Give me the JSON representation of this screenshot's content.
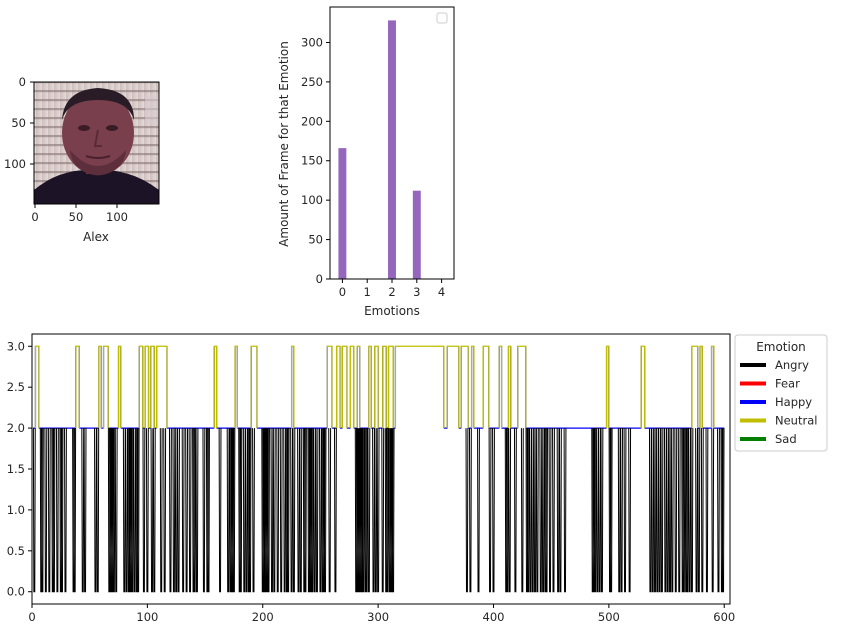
{
  "image_panel": {
    "xlabel": "Alex",
    "xticks": [
      "0",
      "50",
      "100"
    ],
    "yticks": [
      "0",
      "50",
      "100"
    ]
  },
  "chart_data": [
    {
      "type": "bar",
      "xlabel": "Emotions",
      "ylabel": "Amount of Frame for that Emotion",
      "categories": [
        "0",
        "1",
        "2",
        "3",
        "4"
      ],
      "values": [
        166,
        0,
        328,
        112,
        0
      ],
      "ylim": [
        0,
        345
      ],
      "yticks": [
        0,
        50,
        100,
        150,
        200,
        250,
        300
      ],
      "bar_color": "#9467bd",
      "legend": "top-right (empty)"
    },
    {
      "type": "line",
      "xlim": [
        0,
        605
      ],
      "ylim": [
        -0.15,
        3.15
      ],
      "xticks": [
        0,
        100,
        200,
        300,
        400,
        500,
        600
      ],
      "yticks": [
        "0.0",
        "0.5",
        "1.0",
        "1.5",
        "2.0",
        "2.5",
        "3.0"
      ],
      "legend": {
        "title": "Emotion",
        "placement": "outside-right",
        "entries": [
          {
            "label": "Angry",
            "color": "#000000"
          },
          {
            "label": "Fear",
            "color": "#ff0000"
          },
          {
            "label": "Happy",
            "color": "#0000ff"
          },
          {
            "label": "Neutral",
            "color": "#bfbf00"
          },
          {
            "label": "Sad",
            "color": "#008000"
          }
        ]
      },
      "x_end": 600,
      "neutral_frames": [
        [
          3,
          6
        ],
        [
          38,
          41
        ],
        [
          58,
          60
        ],
        [
          62,
          66
        ],
        [
          75,
          77
        ],
        [
          93,
          96
        ],
        [
          98,
          101
        ],
        [
          103,
          106
        ],
        [
          108,
          117
        ],
        [
          158,
          160
        ],
        [
          176,
          178
        ],
        [
          190,
          195
        ],
        [
          225,
          227
        ],
        [
          256,
          260
        ],
        [
          264,
          267
        ],
        [
          269,
          273
        ],
        [
          276,
          279
        ],
        [
          282,
          284
        ],
        [
          292,
          294
        ],
        [
          297,
          300
        ],
        [
          304,
          307
        ],
        [
          309,
          313
        ],
        [
          315,
          357
        ],
        [
          360,
          370
        ],
        [
          372,
          378
        ],
        [
          381,
          383
        ],
        [
          391,
          396
        ],
        [
          405,
          407
        ],
        [
          413,
          415
        ],
        [
          421,
          428
        ],
        [
          498,
          500
        ],
        [
          528,
          531
        ],
        [
          572,
          577
        ],
        [
          579,
          581
        ],
        [
          589,
          591
        ]
      ],
      "happy_frames": [
        [
          1,
          3
        ],
        [
          6,
          38
        ],
        [
          41,
          58
        ],
        [
          60,
          62
        ],
        [
          66,
          75
        ],
        [
          77,
          93
        ],
        [
          96,
          98
        ],
        [
          101,
          103
        ],
        [
          106,
          108
        ],
        [
          117,
          158
        ],
        [
          160,
          176
        ],
        [
          178,
          190
        ],
        [
          195,
          225
        ],
        [
          227,
          256
        ],
        [
          260,
          264
        ],
        [
          267,
          269
        ],
        [
          273,
          276
        ],
        [
          279,
          282
        ],
        [
          284,
          292
        ],
        [
          294,
          297
        ],
        [
          300,
          304
        ],
        [
          307,
          309
        ],
        [
          313,
          315
        ],
        [
          357,
          360
        ],
        [
          370,
          372
        ],
        [
          378,
          381
        ],
        [
          383,
          391
        ],
        [
          396,
          405
        ],
        [
          407,
          413
        ],
        [
          415,
          421
        ],
        [
          428,
          498
        ],
        [
          500,
          528
        ],
        [
          531,
          572
        ],
        [
          577,
          579
        ],
        [
          581,
          589
        ],
        [
          591,
          600
        ]
      ],
      "angry_frames": [
        2,
        8,
        9,
        12,
        15,
        18,
        19,
        22,
        25,
        26,
        29,
        36,
        37,
        44,
        46,
        55,
        57,
        67,
        68,
        69,
        70,
        71,
        73,
        80,
        82,
        84,
        85,
        86,
        87,
        89,
        91,
        92,
        97,
        100,
        104,
        106,
        112,
        115,
        120,
        123,
        125,
        127,
        131,
        134,
        137,
        140,
        141,
        143,
        149,
        152,
        153,
        163,
        170,
        172,
        173,
        174,
        175,
        180,
        181,
        184,
        186,
        188,
        189,
        192,
        200,
        201,
        202,
        203,
        204,
        205,
        208,
        210,
        213,
        216,
        219,
        221,
        222,
        225,
        227,
        231,
        233,
        236,
        237,
        240,
        241,
        242,
        243,
        245,
        247,
        250,
        252,
        253,
        254,
        258,
        263,
        281,
        282,
        283,
        284,
        285,
        286,
        287,
        289,
        290,
        292,
        296,
        298,
        300,
        304,
        307,
        308,
        310,
        311,
        312,
        313,
        377,
        380,
        387,
        397,
        400,
        411,
        412,
        414,
        419,
        425,
        429,
        430,
        432,
        434,
        436,
        438,
        441,
        443,
        445,
        446,
        449,
        452,
        456,
        458,
        462,
        486,
        487,
        488,
        490,
        492,
        494,
        501,
        502,
        509,
        511,
        514,
        518,
        536,
        538,
        540,
        542,
        544,
        546,
        549,
        551,
        553,
        555,
        558,
        561,
        564,
        565,
        567,
        568,
        570,
        572,
        576,
        578,
        581,
        585,
        590,
        595,
        598,
        599
      ]
    }
  ]
}
